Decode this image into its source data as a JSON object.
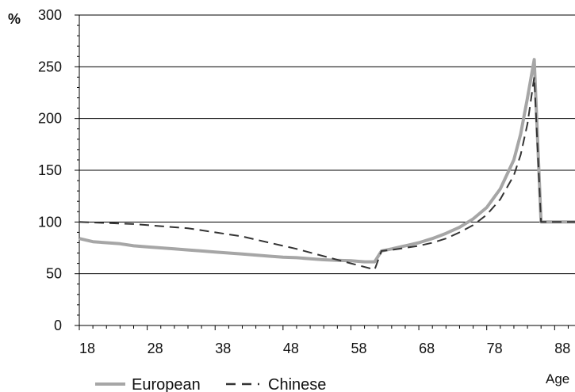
{
  "chart_data": {
    "type": "line",
    "title": "",
    "xlabel": "Age",
    "ylabel": "%",
    "xlim": [
      18,
      91
    ],
    "ylim": [
      0,
      300
    ],
    "grid": true,
    "legend_position": "bottom-left",
    "x_ticks": [
      18,
      28,
      38,
      48,
      58,
      68,
      78,
      88
    ],
    "y_ticks": [
      0,
      50,
      100,
      150,
      200,
      250,
      300
    ],
    "series": [
      {
        "name": "European",
        "style": "solid",
        "color": "#a6a6a6",
        "points": [
          [
            18,
            84
          ],
          [
            20,
            81
          ],
          [
            22,
            80
          ],
          [
            24,
            79
          ],
          [
            26,
            77
          ],
          [
            28,
            76
          ],
          [
            30,
            75
          ],
          [
            32,
            74
          ],
          [
            34,
            73
          ],
          [
            36,
            72
          ],
          [
            38,
            71
          ],
          [
            40,
            70
          ],
          [
            42,
            69
          ],
          [
            44,
            68
          ],
          [
            46,
            67
          ],
          [
            48,
            66
          ],
          [
            50,
            65.5
          ],
          [
            52,
            64.5
          ],
          [
            54,
            63.5
          ],
          [
            56,
            63
          ],
          [
            58,
            62.5
          ],
          [
            60,
            61.5
          ],
          [
            61.5,
            61.5
          ],
          [
            62.5,
            72
          ],
          [
            64,
            74
          ],
          [
            66,
            77
          ],
          [
            68,
            80
          ],
          [
            70,
            84
          ],
          [
            72,
            89
          ],
          [
            74,
            95
          ],
          [
            76,
            103
          ],
          [
            78,
            114
          ],
          [
            80,
            132
          ],
          [
            82,
            160
          ],
          [
            83,
            185
          ],
          [
            84,
            220
          ],
          [
            85,
            257
          ],
          [
            86,
            100
          ],
          [
            91,
            100
          ]
        ]
      },
      {
        "name": "Chinese",
        "style": "dashed",
        "color": "#333333",
        "points": [
          [
            18,
            100
          ],
          [
            22,
            99
          ],
          [
            26,
            98
          ],
          [
            30,
            96
          ],
          [
            34,
            94
          ],
          [
            38,
            90
          ],
          [
            42,
            86
          ],
          [
            46,
            80
          ],
          [
            50,
            74
          ],
          [
            54,
            67
          ],
          [
            58,
            60
          ],
          [
            61.5,
            54
          ],
          [
            62.5,
            72
          ],
          [
            64,
            73
          ],
          [
            66,
            75
          ],
          [
            68,
            77
          ],
          [
            70,
            80
          ],
          [
            72,
            84
          ],
          [
            74,
            90
          ],
          [
            76,
            97
          ],
          [
            78,
            107
          ],
          [
            80,
            122
          ],
          [
            82,
            145
          ],
          [
            83,
            165
          ],
          [
            84,
            195
          ],
          [
            85,
            240
          ],
          [
            86,
            100
          ],
          [
            91,
            100
          ]
        ]
      }
    ]
  }
}
